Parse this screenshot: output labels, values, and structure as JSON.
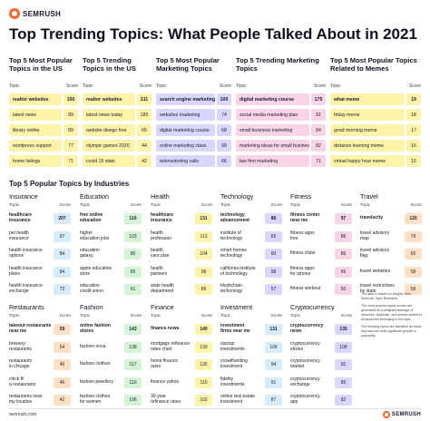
{
  "brand": {
    "name": "SEMRUSH",
    "url": "semrush.com"
  },
  "title": "Top Trending Topics: What People Talked About in 2021",
  "header_labels": {
    "topic": "Topic",
    "score": "Score"
  },
  "colors": {
    "orange": "#ff642d",
    "yellow": "#fff3a8",
    "pink": "#f9d3e6",
    "lilac": "#d9d6ff",
    "green": "#d4f4d6",
    "blue": "#d7ecfb"
  },
  "top_sections": [
    {
      "title": "Top 5 Most Popular Topics in the US",
      "color": "#fff3a8",
      "items": [
        {
          "topic": "realtor websites",
          "score": "100",
          "bold": true
        },
        {
          "topic": "latest news",
          "score": "89"
        },
        {
          "topic": "library online",
          "score": "89"
        },
        {
          "topic": "wordpress support",
          "score": "77"
        },
        {
          "topic": "home listings",
          "score": "71"
        }
      ]
    },
    {
      "title": "Top 5 Trending Topics in the US",
      "color": "#fff3a8",
      "items": [
        {
          "topic": "realtor websites",
          "score": "211",
          "bold": true
        },
        {
          "topic": "latest news today",
          "score": "185"
        },
        {
          "topic": "website design free",
          "score": "65"
        },
        {
          "topic": "olympic games 2020",
          "score": "44"
        },
        {
          "topic": "covid 19 stats",
          "score": "42"
        }
      ]
    },
    {
      "title": "Top 5 Most Popular Marketing Topics",
      "color": "#d9d6ff",
      "items": [
        {
          "topic": "search engine marketing",
          "score": "100",
          "bold": true
        },
        {
          "topic": "websites marketing",
          "score": "74"
        },
        {
          "topic": "digital marketing course",
          "score": "68"
        },
        {
          "topic": "online marketing class",
          "score": "68"
        },
        {
          "topic": "telemarketing calls",
          "score": "66"
        }
      ]
    },
    {
      "title": "Top 5 Trending Marketing Topics",
      "color": "#f9d3e6",
      "items": [
        {
          "topic": "digital marketing course",
          "score": "175",
          "bold": true
        },
        {
          "topic": "social media marketing plan",
          "score": "91"
        },
        {
          "topic": "small business marketing",
          "score": "84"
        },
        {
          "topic": "marketing ideas for small business",
          "score": "82"
        },
        {
          "topic": "law firm marketing",
          "score": "71"
        }
      ]
    },
    {
      "title": "Top 5 Most Popular Topics Related to Memes",
      "color": "#fff3a8",
      "items": [
        {
          "topic": "what meme",
          "score": "19",
          "bold": true
        },
        {
          "topic": "friday meme",
          "score": "18"
        },
        {
          "topic": "good morning meme",
          "score": "17"
        },
        {
          "topic": "distance learning meme",
          "score": "16"
        },
        {
          "topic": "virtual happy hour meme",
          "score": "15"
        }
      ]
    }
  ],
  "industries_title": "Top 5 Popular Topics by Industries",
  "industries": [
    {
      "name": "Insurance",
      "color": "#d7ecfb",
      "items": [
        {
          "topic": "healthcare\ninsurance",
          "score": "207",
          "bold": true
        },
        {
          "topic": "pet health\ninsurance",
          "score": "97"
        },
        {
          "topic": "health insurance\noptions",
          "score": "84"
        },
        {
          "topic": "health insurance\nplans",
          "score": "84"
        },
        {
          "topic": "health insurance\nexchange",
          "score": "72"
        }
      ]
    },
    {
      "name": "Education",
      "color": "#d4f4d6",
      "items": [
        {
          "topic": "free online\neducation",
          "score": "110",
          "bold": true
        },
        {
          "topic": "higher\neducation jobs",
          "score": "103"
        },
        {
          "topic": "education\ngalaxy",
          "score": "80"
        },
        {
          "topic": "apple education\nstore",
          "score": "65"
        },
        {
          "topic": "education\ncredit union",
          "score": "61"
        }
      ]
    },
    {
      "name": "Health",
      "color": "#fff3a8",
      "items": [
        {
          "topic": "healthcare\ninsurance",
          "score": "131",
          "bold": true
        },
        {
          "topic": "health\nprofession",
          "score": "113"
        },
        {
          "topic": "health\ncare plan",
          "score": "104"
        },
        {
          "topic": "health\npartners",
          "score": "98"
        },
        {
          "topic": "state health\ndepartment",
          "score": "89"
        }
      ]
    },
    {
      "name": "Technology",
      "color": "#d9d6ff",
      "items": [
        {
          "topic": "technology\nadvancement",
          "score": "86",
          "bold": true
        },
        {
          "topic": "institute of\ntechnology",
          "score": "65"
        },
        {
          "topic": "smart homes\ntechnology",
          "score": "60"
        },
        {
          "topic": "california institute\nof technology",
          "score": "58"
        },
        {
          "topic": "blockchain\ntechnology",
          "score": "57"
        }
      ]
    },
    {
      "name": "Fitness",
      "color": "#f9d3e6",
      "items": [
        {
          "topic": "fitness center\nnear me",
          "score": "97",
          "bold": true
        },
        {
          "topic": "fitness apps\nfree",
          "score": "86"
        },
        {
          "topic": "fitness clubs",
          "score": "86"
        },
        {
          "topic": "fitness apps\nfor iphone",
          "score": "66"
        },
        {
          "topic": "fitness workout",
          "score": "50"
        }
      ]
    },
    {
      "name": "Travel",
      "color": "#ffe0c4",
      "items": [
        {
          "topic": "travelocity",
          "score": "120",
          "bold": true
        },
        {
          "topic": "travel advisory\nmap",
          "score": "79"
        },
        {
          "topic": "travel advisory\nflag",
          "score": "65"
        },
        {
          "topic": "travel websites",
          "score": "58"
        },
        {
          "topic": "travel restrictions\nby state",
          "score": "58"
        }
      ]
    },
    {
      "name": "Restaurants",
      "color": "#ffe0c4",
      "items": [
        {
          "topic": "takeout restaurants\nnear me",
          "score": "59",
          "bold": true
        },
        {
          "topic": "brewery\nrestaurants",
          "score": "54"
        },
        {
          "topic": "restaurants\nin chicago",
          "score": "46"
        },
        {
          "topic": "chick fil\na restaurants",
          "score": "46"
        },
        {
          "topic": "restaurants near\nmy location",
          "score": "42"
        }
      ]
    },
    {
      "name": "Fashion",
      "color": "#d4f4d6",
      "items": [
        {
          "topic": "online fashion\nstores",
          "score": "143",
          "bold": true
        },
        {
          "topic": "fashion nova",
          "score": "138"
        },
        {
          "topic": "fashion clothes",
          "score": "117"
        },
        {
          "topic": "fashion jewellery",
          "score": "110"
        },
        {
          "topic": "fashion clothes\nfor women",
          "score": "106"
        }
      ]
    },
    {
      "name": "Finance",
      "color": "#fff3a8",
      "items": [
        {
          "topic": "finance news",
          "score": "140",
          "bold": true
        },
        {
          "topic": "mortgage refinance\nrates chart",
          "score": "139"
        },
        {
          "topic": "home finance\nrates",
          "score": "135"
        },
        {
          "topic": "finance yahoo",
          "score": "110"
        },
        {
          "topic": "30-year\nrefinance rates",
          "score": "102"
        }
      ]
    },
    {
      "name": "Investment",
      "color": "#d7ecfb",
      "items": [
        {
          "topic": "investment\nfirms near me",
          "score": "131",
          "bold": true
        },
        {
          "topic": "startup\ninvestments",
          "score": "106"
        },
        {
          "topic": "crowdfunding\ninvestment",
          "score": "94"
        },
        {
          "topic": "fidelity\ninvestments",
          "score": "91"
        },
        {
          "topic": "online real estate\ninvestment",
          "score": "87"
        }
      ]
    },
    {
      "name": "Cryptocurrency",
      "color": "#d9d6ff",
      "items": [
        {
          "topic": "cryptocurrency\nnews",
          "score": "135",
          "bold": true
        },
        {
          "topic": "cryptocurrency\nstocks",
          "score": "108"
        },
        {
          "topic": "cryptocurrency\nmarket",
          "score": "92"
        },
        {
          "topic": "cryptocurrency\nexchange",
          "score": "85"
        },
        {
          "topic": "cryptocurrency\napp",
          "score": "82"
        }
      ]
    }
  ],
  "notes": [
    "The data is based on insights from Semrush Topic Research.",
    "The most popular topics scores are generated as a weighted average of searches, backlinks, and shares related to all keywords belonging to the topic.",
    "The trending topics are identified as those that saw the most significant growth in popularity."
  ]
}
